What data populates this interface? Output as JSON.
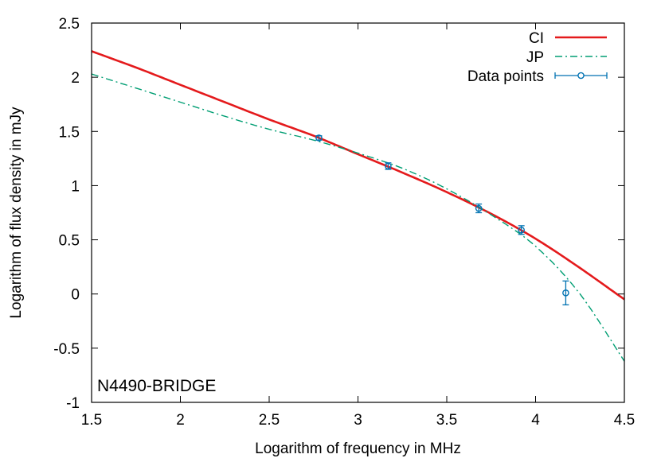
{
  "chart_data": {
    "type": "line",
    "title": "",
    "xlabel": "Logarithm of frequency in MHz",
    "ylabel": "Logarithm of flux density in mJy",
    "xlim": [
      1.5,
      4.5
    ],
    "ylim": [
      -1,
      2.5
    ],
    "x_ticks": [
      "1.5",
      "2",
      "2.5",
      "3",
      "3.5",
      "4",
      "4.5"
    ],
    "y_ticks": [
      "-1",
      "-0.5",
      "0",
      "0.5",
      "1",
      "1.5",
      "2",
      "2.5"
    ],
    "grid": false,
    "legend_position": "top-right",
    "annotation": "N4490-BRIDGE",
    "series": [
      {
        "name": "CI",
        "style": "solid",
        "color": "#e41a1c",
        "x": [
          1.5,
          1.75,
          2.0,
          2.25,
          2.5,
          2.75,
          3.0,
          3.25,
          3.5,
          3.75,
          4.0,
          4.25,
          4.5
        ],
        "y": [
          2.24,
          2.09,
          1.93,
          1.77,
          1.61,
          1.46,
          1.29,
          1.12,
          0.94,
          0.74,
          0.51,
          0.24,
          -0.05
        ]
      },
      {
        "name": "JP",
        "style": "dash-dot",
        "color": "#009e73",
        "x": [
          1.5,
          1.75,
          2.0,
          2.25,
          2.5,
          2.75,
          3.0,
          3.25,
          3.5,
          3.75,
          4.0,
          4.25,
          4.5
        ],
        "y": [
          2.03,
          1.9,
          1.77,
          1.64,
          1.52,
          1.42,
          1.3,
          1.16,
          0.97,
          0.73,
          0.44,
          0.0,
          -0.62
        ]
      },
      {
        "name": "Data points",
        "style": "points-errorbars",
        "color": "#0072b2",
        "x": [
          2.78,
          3.17,
          3.68,
          3.92,
          4.17
        ],
        "y": [
          1.44,
          1.18,
          0.79,
          0.59,
          0.01
        ],
        "err": [
          0.02,
          0.03,
          0.04,
          0.04,
          0.11
        ]
      }
    ]
  }
}
